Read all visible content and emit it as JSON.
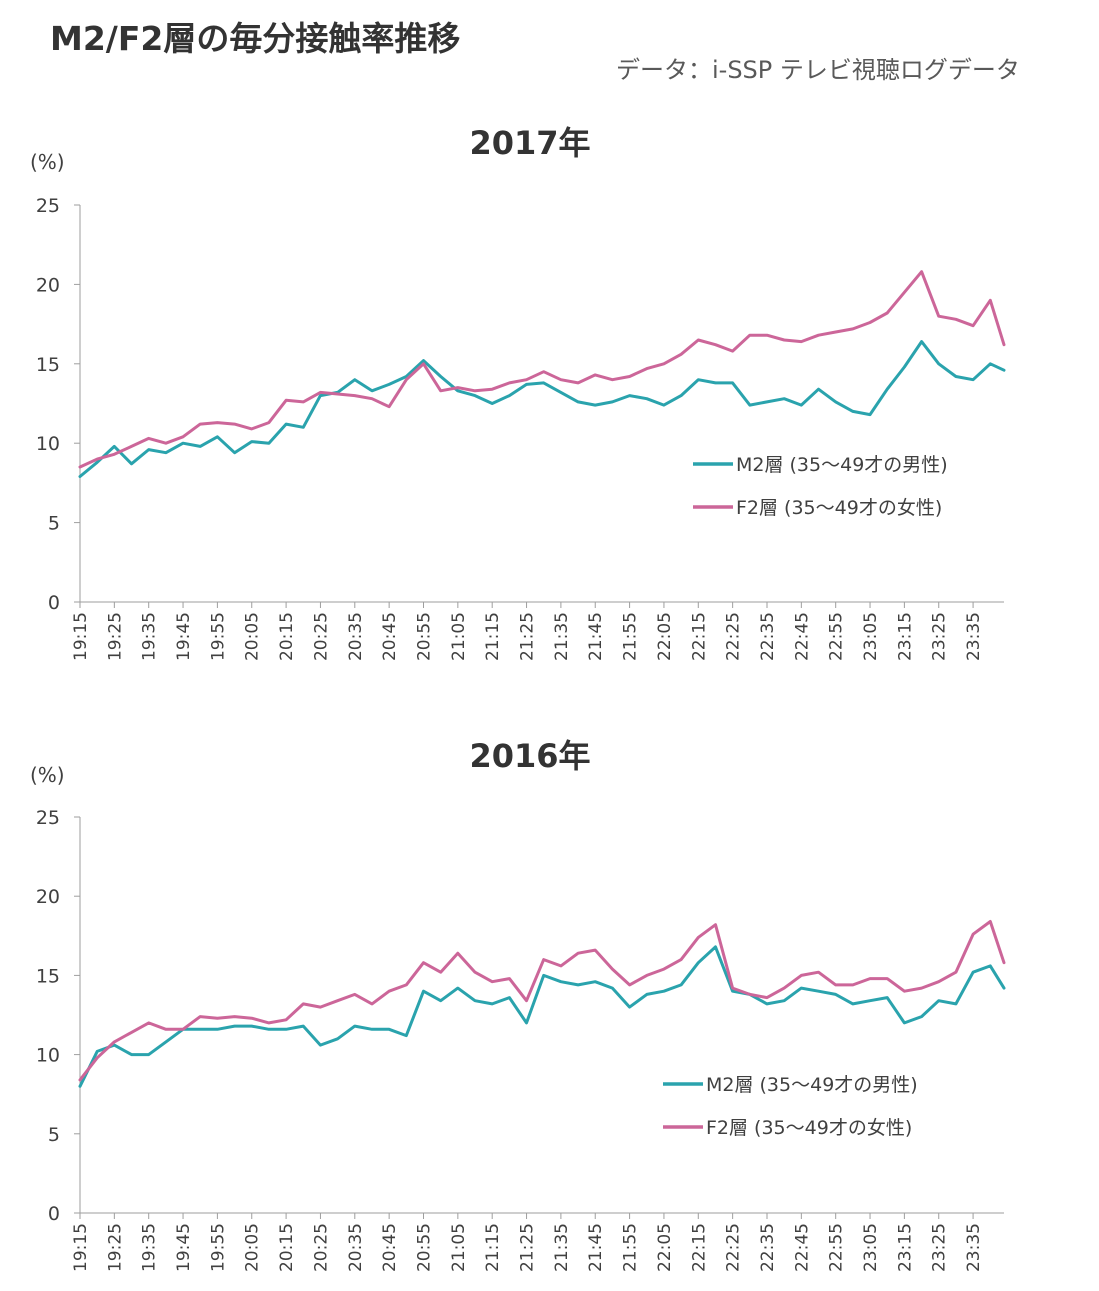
{
  "page": {
    "title": "M2/F2層の毎分接触率推移",
    "source": "データ：i-SSP テレビ視聴ログデータ"
  },
  "chart_data": [
    {
      "type": "line",
      "title": "2017年",
      "ylabel": "(%)",
      "ylim": [
        0,
        25
      ],
      "yticks": [
        0,
        5,
        10,
        15,
        20,
        25
      ],
      "xticks": [
        "19:15",
        "19:25",
        "19:35",
        "19:45",
        "19:55",
        "20:05",
        "20:15",
        "20:25",
        "20:35",
        "20:45",
        "20:55",
        "21:05",
        "21:15",
        "21:25",
        "21:35",
        "21:45",
        "21:55",
        "22:05",
        "22:15",
        "22:25",
        "22:35",
        "22:45",
        "22:55",
        "23:05",
        "23:15",
        "23:25",
        "23:35"
      ],
      "x": [
        "19:15",
        "19:20",
        "19:25",
        "19:30",
        "19:35",
        "19:40",
        "19:45",
        "19:50",
        "19:55",
        "20:00",
        "20:05",
        "20:10",
        "20:15",
        "20:20",
        "20:25",
        "20:30",
        "20:35",
        "20:40",
        "20:45",
        "20:50",
        "20:55",
        "21:00",
        "21:05",
        "21:10",
        "21:15",
        "21:20",
        "21:25",
        "21:30",
        "21:35",
        "21:40",
        "21:45",
        "21:50",
        "21:55",
        "22:00",
        "22:05",
        "22:10",
        "22:15",
        "22:20",
        "22:25",
        "22:30",
        "22:35",
        "22:40",
        "22:45",
        "22:50",
        "22:55",
        "23:00",
        "23:05",
        "23:10",
        "23:15",
        "23:20",
        "23:25",
        "23:30",
        "23:35",
        "23:40",
        "23:44"
      ],
      "grid": false,
      "legend": "right",
      "series": [
        {
          "name": "M2層 (35～49才の男性)",
          "color": "#2aa3ad",
          "values": [
            7.9,
            8.8,
            9.8,
            8.7,
            9.6,
            9.4,
            10.0,
            9.8,
            10.4,
            9.4,
            10.1,
            10.0,
            11.2,
            11.0,
            13.0,
            13.2,
            14.0,
            13.3,
            13.7,
            14.2,
            15.2,
            14.2,
            13.3,
            13.0,
            12.5,
            13.0,
            13.7,
            13.8,
            13.2,
            12.6,
            12.4,
            12.6,
            13.0,
            12.8,
            12.4,
            13.0,
            14.0,
            13.8,
            13.8,
            12.4,
            12.6,
            12.8,
            12.4,
            13.4,
            12.6,
            12.0,
            11.8,
            13.4,
            14.8,
            16.4,
            15.0,
            14.2,
            14.0,
            15.0,
            14.6
          ]
        },
        {
          "name": "F2層 (35～49才の女性)",
          "color": "#cc6699",
          "values": [
            8.5,
            9.0,
            9.3,
            9.8,
            10.3,
            10.0,
            10.4,
            11.2,
            11.3,
            11.2,
            10.9,
            11.3,
            12.7,
            12.6,
            13.2,
            13.1,
            13.0,
            12.8,
            12.3,
            14.0,
            15.0,
            13.3,
            13.5,
            13.3,
            13.4,
            13.8,
            14.0,
            14.5,
            14.0,
            13.8,
            14.3,
            14.0,
            14.2,
            14.7,
            15.0,
            15.6,
            16.5,
            16.2,
            15.8,
            16.8,
            16.8,
            16.5,
            16.4,
            16.8,
            17.0,
            17.2,
            17.6,
            18.2,
            19.5,
            20.8,
            18.0,
            17.8,
            17.4,
            19.0,
            16.2
          ]
        }
      ]
    },
    {
      "type": "line",
      "title": "2016年",
      "ylabel": "(%)",
      "ylim": [
        0,
        25
      ],
      "yticks": [
        0,
        5,
        10,
        15,
        20,
        25
      ],
      "xticks": [
        "19:15",
        "19:25",
        "19:35",
        "19:45",
        "19:55",
        "20:05",
        "20:15",
        "20:25",
        "20:35",
        "20:45",
        "20:55",
        "21:05",
        "21:15",
        "21:25",
        "21:35",
        "21:45",
        "21:55",
        "22:05",
        "22:15",
        "22:25",
        "22:35",
        "22:45",
        "22:55",
        "23:05",
        "23:15",
        "23:25",
        "23:35"
      ],
      "x": [
        "19:15",
        "19:20",
        "19:25",
        "19:30",
        "19:35",
        "19:40",
        "19:45",
        "19:50",
        "19:55",
        "20:00",
        "20:05",
        "20:10",
        "20:15",
        "20:20",
        "20:25",
        "20:30",
        "20:35",
        "20:40",
        "20:45",
        "20:50",
        "20:55",
        "21:00",
        "21:05",
        "21:10",
        "21:15",
        "21:20",
        "21:25",
        "21:30",
        "21:35",
        "21:40",
        "21:45",
        "21:50",
        "21:55",
        "22:00",
        "22:05",
        "22:10",
        "22:15",
        "22:20",
        "22:25",
        "22:30",
        "22:35",
        "22:40",
        "22:45",
        "22:50",
        "22:55",
        "23:00",
        "23:05",
        "23:10",
        "23:15",
        "23:20",
        "23:25",
        "23:30",
        "23:35",
        "23:40",
        "23:44"
      ],
      "grid": false,
      "legend": "right",
      "series": [
        {
          "name": "M2層 (35～49才の男性)",
          "color": "#2aa3ad",
          "values": [
            8.0,
            10.2,
            10.6,
            10.0,
            10.0,
            10.8,
            11.6,
            11.6,
            11.6,
            11.8,
            11.8,
            11.6,
            11.6,
            11.8,
            10.6,
            11.0,
            11.8,
            11.6,
            11.6,
            11.2,
            14.0,
            13.4,
            14.2,
            13.4,
            13.2,
            13.6,
            12.0,
            15.0,
            14.6,
            14.4,
            14.6,
            14.2,
            13.0,
            13.8,
            14.0,
            14.4,
            15.8,
            16.8,
            14.0,
            13.8,
            13.2,
            13.4,
            14.2,
            14.0,
            13.8,
            13.2,
            13.4,
            13.6,
            12.0,
            12.4,
            13.4,
            13.2,
            15.2,
            15.6,
            14.2
          ]
        },
        {
          "name": "F2層 (35～49才の女性)",
          "color": "#cc6699",
          "values": [
            8.4,
            9.8,
            10.8,
            11.4,
            12.0,
            11.6,
            11.6,
            12.4,
            12.3,
            12.4,
            12.3,
            12.0,
            12.2,
            13.2,
            13.0,
            13.4,
            13.8,
            13.2,
            14.0,
            14.4,
            15.8,
            15.2,
            16.4,
            15.2,
            14.6,
            14.8,
            13.4,
            16.0,
            15.6,
            16.4,
            16.6,
            15.4,
            14.4,
            15.0,
            15.4,
            16.0,
            17.4,
            18.2,
            14.2,
            13.8,
            13.6,
            14.2,
            15.0,
            15.2,
            14.4,
            14.4,
            14.8,
            14.8,
            14.0,
            14.2,
            14.6,
            15.2,
            17.6,
            18.4,
            15.8
          ]
        }
      ]
    }
  ]
}
